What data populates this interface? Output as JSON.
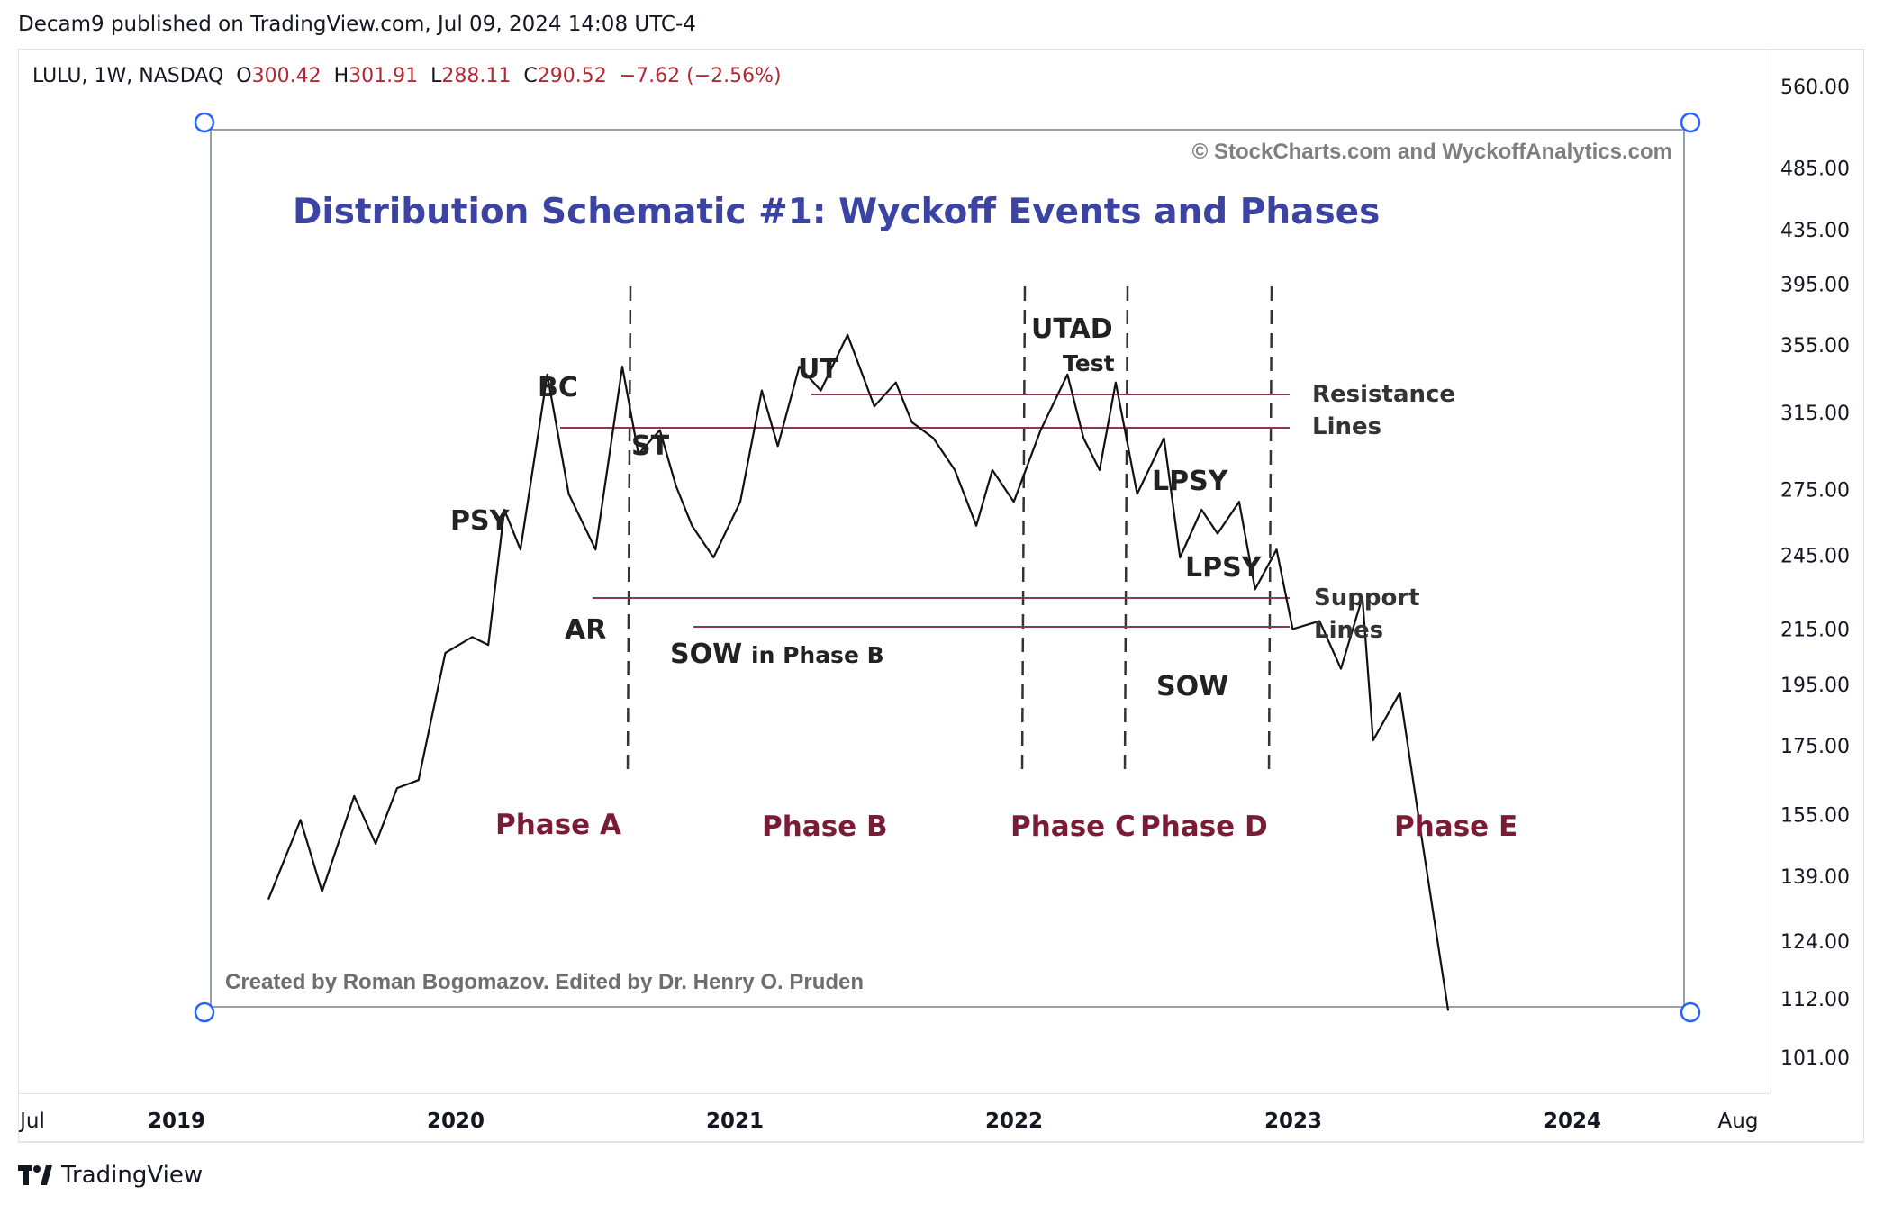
{
  "header": {
    "publish_text": "Decam9 published on TradingView.com, Jul 09, 2024 14:08 UTC-4"
  },
  "symbol_bar": {
    "symbol": "LULU, 1W, NASDAQ",
    "open_label": "O",
    "open": "300.42",
    "high_label": "H",
    "high": "301.91",
    "low_label": "L",
    "low": "288.11",
    "close_label": "C",
    "close": "290.52",
    "change": "−7.62 (−2.56%)"
  },
  "footer": {
    "brand": "TradingView"
  },
  "colors": {
    "title_blue": "#3c44a3",
    "phase_maroon": "#7a1c36",
    "level_line": "#8b3a4a",
    "price_red": "#b22833",
    "anchor_blue": "#2962ff"
  },
  "chart_data": {
    "type": "line",
    "price_axis": {
      "scale": "log",
      "ticks": [
        "560.00",
        "485.00",
        "435.00",
        "395.00",
        "355.00",
        "315.00",
        "275.00",
        "245.00",
        "215.00",
        "195.00",
        "175.00",
        "155.00",
        "139.00",
        "124.00",
        "112.00",
        "101.00"
      ]
    },
    "time_axis": {
      "ticks": [
        "Jul",
        "2019",
        "2020",
        "2021",
        "2022",
        "2023",
        "2024",
        "Aug"
      ]
    },
    "embedded_image": {
      "copyright": "© StockCharts.com and WyckoffAnalytics.com",
      "title": "Distribution Schematic #1: Wyckoff Events and Phases",
      "credit": "Created by Roman Bogomazov. Edited by Dr. Henry O. Pruden",
      "event_labels": {
        "psy": "PSY",
        "bc": "BC",
        "ar": "AR",
        "st": "ST",
        "sow_b": "SOW",
        "sow_b_suffix": "in Phase B",
        "ut": "UT",
        "utad": "UTAD",
        "test": "Test",
        "lpsy1": "LPSY",
        "lpsy2": "LPSY",
        "sow_d": "SOW"
      },
      "line_labels": {
        "resistance_1": "Resistance",
        "resistance_2": "Lines",
        "support_1": "Support",
        "support_2": "Lines"
      },
      "phases": [
        "Phase A",
        "Phase B",
        "Phase C",
        "Phase D",
        "Phase E"
      ],
      "price_path": [
        [
          0,
          4
        ],
        [
          6,
          14
        ],
        [
          10,
          5
        ],
        [
          16,
          17
        ],
        [
          20,
          11
        ],
        [
          24,
          18
        ],
        [
          28,
          19
        ],
        [
          33,
          35
        ],
        [
          38,
          37
        ],
        [
          41,
          36
        ],
        [
          44,
          53
        ],
        [
          47,
          48
        ],
        [
          52,
          70
        ],
        [
          56,
          55
        ],
        [
          61,
          48
        ],
        [
          66,
          71
        ],
        [
          69,
          60
        ],
        [
          73,
          63
        ],
        [
          76,
          56
        ],
        [
          79,
          51
        ],
        [
          83,
          47
        ],
        [
          88,
          54
        ],
        [
          92,
          68
        ],
        [
          95,
          61
        ],
        [
          99,
          71
        ],
        [
          103,
          68
        ],
        [
          108,
          75
        ],
        [
          113,
          66
        ],
        [
          117,
          69
        ],
        [
          120,
          64
        ],
        [
          124,
          62
        ],
        [
          128,
          58
        ],
        [
          132,
          51
        ],
        [
          135,
          58
        ],
        [
          139,
          54
        ],
        [
          144,
          63
        ],
        [
          149,
          70
        ],
        [
          152,
          62
        ],
        [
          155,
          58
        ],
        [
          158,
          69
        ],
        [
          162,
          55
        ],
        [
          167,
          62
        ],
        [
          170,
          47
        ],
        [
          174,
          53
        ],
        [
          177,
          50
        ],
        [
          181,
          54
        ],
        [
          184,
          43
        ],
        [
          188,
          48
        ],
        [
          191,
          38
        ],
        [
          196,
          39
        ],
        [
          200,
          33
        ],
        [
          204,
          42
        ],
        [
          206,
          24
        ],
        [
          211,
          30
        ],
        [
          215,
          12
        ],
        [
          220,
          -10
        ]
      ]
    }
  }
}
